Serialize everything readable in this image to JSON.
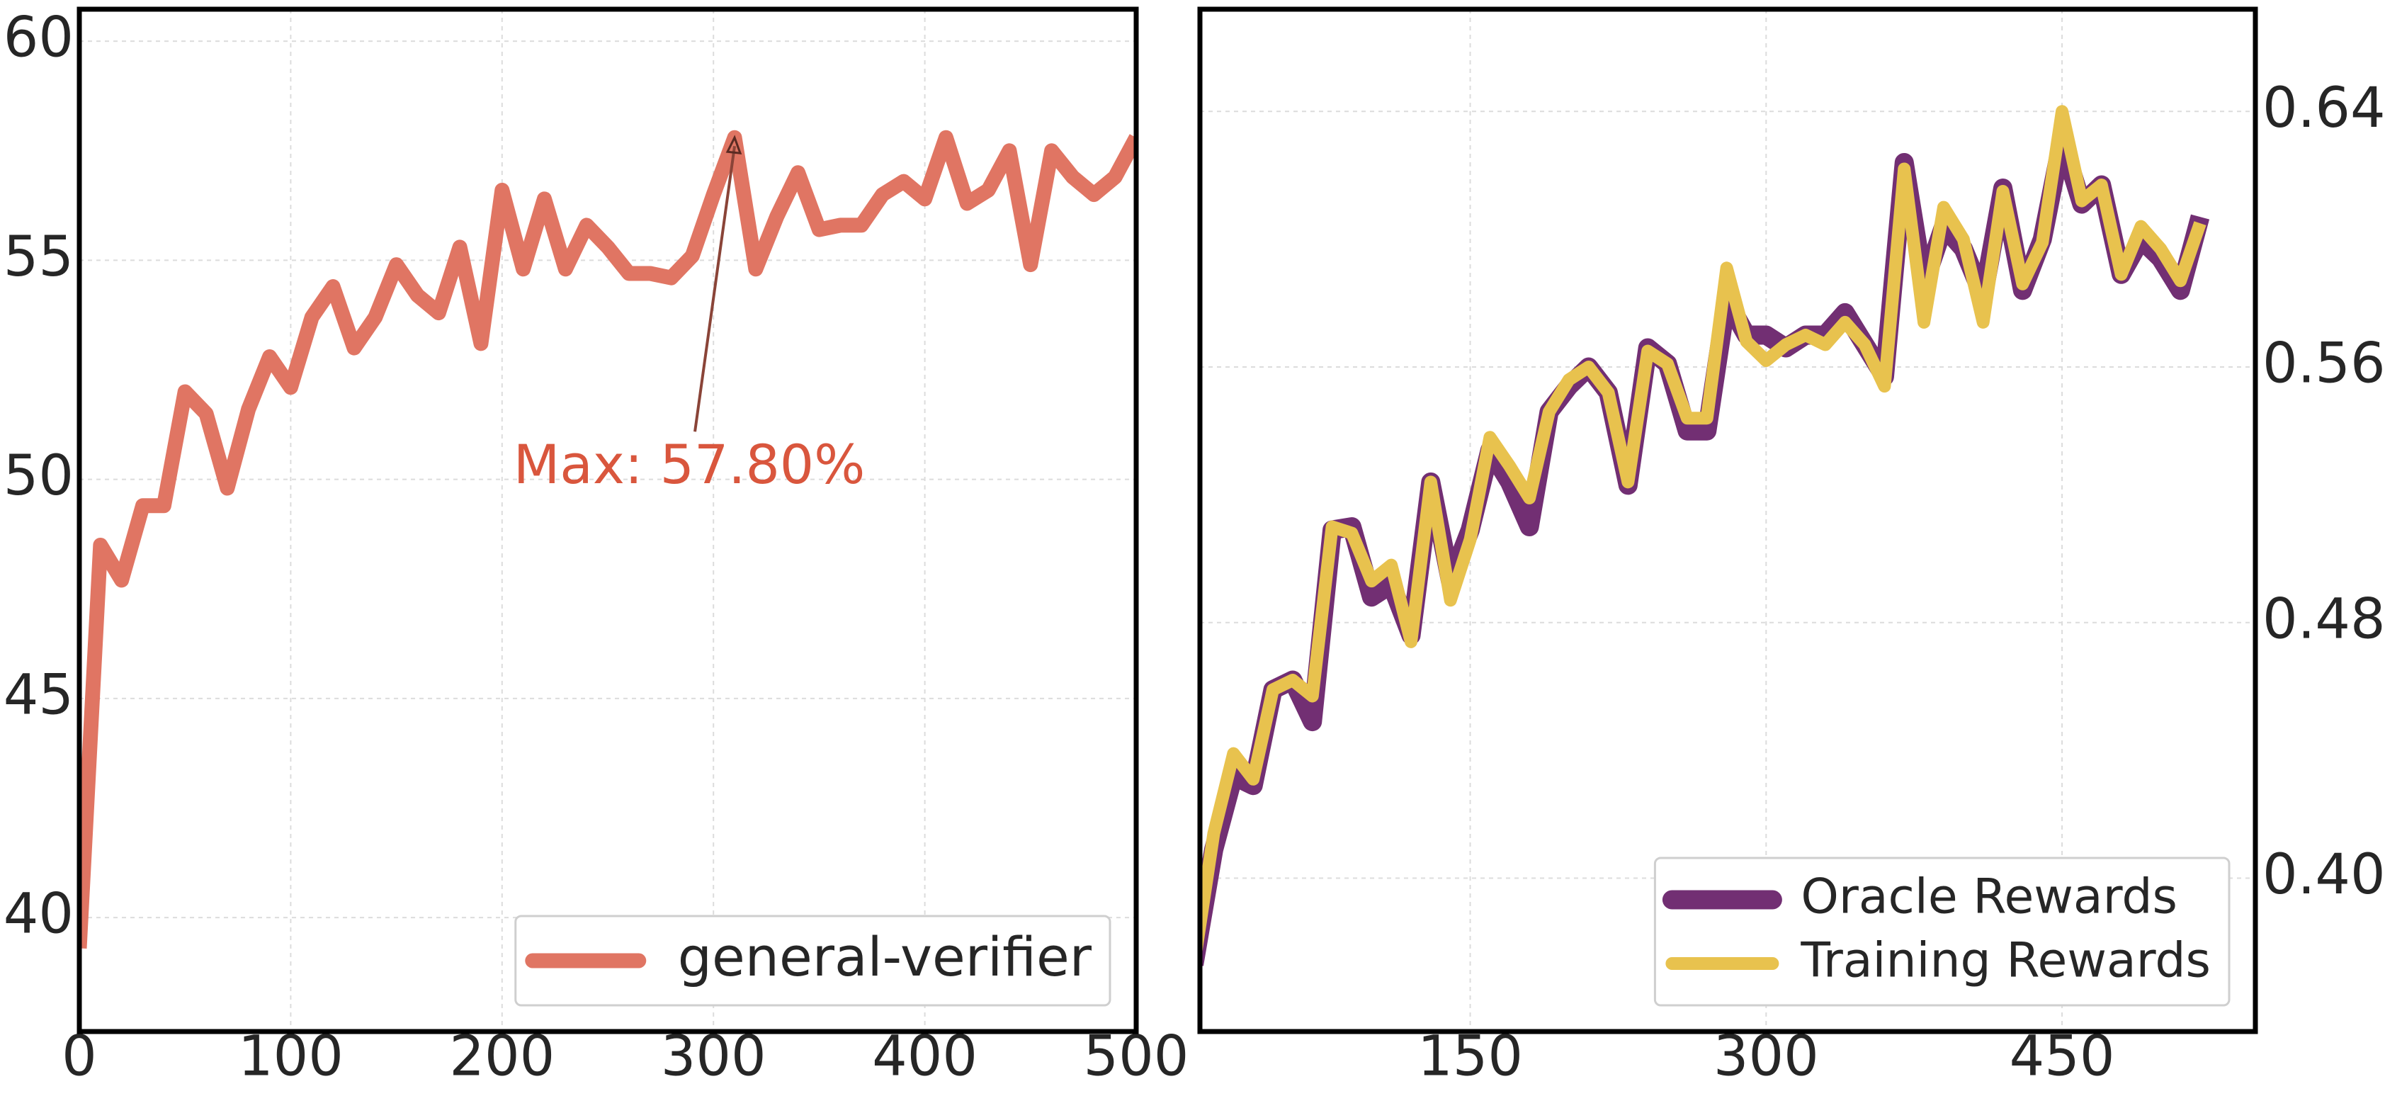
{
  "chart_data": [
    {
      "type": "line",
      "x": [
        0,
        10,
        20,
        30,
        40,
        50,
        60,
        70,
        80,
        90,
        100,
        110,
        120,
        130,
        140,
        150,
        160,
        170,
        180,
        190,
        200,
        210,
        220,
        230,
        240,
        250,
        260,
        270,
        280,
        290,
        300,
        310,
        320,
        330,
        340,
        350,
        360,
        370,
        380,
        390,
        400,
        410,
        420,
        430,
        440,
        450,
        460,
        470,
        480,
        490,
        500
      ],
      "series": [
        {
          "name": "general-verifier",
          "color": "#e07563",
          "values": [
            39.3,
            48.5,
            47.7,
            49.4,
            49.4,
            52.0,
            51.5,
            49.8,
            51.6,
            52.8,
            52.1,
            53.7,
            54.4,
            53.0,
            53.7,
            54.9,
            54.2,
            53.8,
            55.3,
            53.1,
            56.6,
            54.8,
            56.4,
            54.8,
            55.8,
            55.3,
            54.7,
            54.7,
            54.6,
            55.1,
            56.5,
            57.8,
            54.8,
            56.0,
            57.0,
            55.7,
            55.8,
            55.8,
            56.5,
            56.8,
            56.4,
            57.8,
            56.3,
            56.6,
            57.5,
            54.9,
            57.5,
            56.9,
            56.5,
            56.9,
            57.8
          ]
        }
      ],
      "annotation": {
        "text": "Max: 57.80%",
        "xy": [
          310,
          57.8
        ],
        "color": "#d9563d"
      },
      "xlim": [
        0,
        500
      ],
      "ylim": [
        37.4,
        60.73
      ],
      "xticks": [
        0,
        100,
        200,
        300,
        400,
        500
      ],
      "yticks": [
        40,
        45,
        50,
        55,
        60
      ],
      "yaxis_side": "left",
      "grid": true,
      "legend": "lower right"
    },
    {
      "type": "line",
      "x": [
        10,
        20,
        30,
        40,
        50,
        60,
        70,
        80,
        90,
        100,
        110,
        120,
        130,
        140,
        150,
        160,
        170,
        180,
        190,
        200,
        210,
        220,
        230,
        240,
        250,
        260,
        270,
        280,
        290,
        300,
        310,
        320,
        330,
        340,
        350,
        360,
        370,
        380,
        390,
        400,
        410,
        420,
        430,
        440,
        450,
        460,
        470,
        480,
        490,
        500,
        510,
        520
      ],
      "series": [
        {
          "name": "Oracle Rewards",
          "color": "#722f73",
          "values": [
            0.373,
            0.409,
            0.432,
            0.429,
            0.459,
            0.462,
            0.449,
            0.509,
            0.51,
            0.488,
            0.492,
            0.476,
            0.524,
            0.493,
            0.509,
            0.534,
            0.524,
            0.51,
            0.546,
            0.554,
            0.56,
            0.552,
            0.523,
            0.566,
            0.561,
            0.54,
            0.54,
            0.581,
            0.57,
            0.57,
            0.566,
            0.57,
            0.57,
            0.577,
            0.567,
            0.557,
            0.624,
            0.586,
            0.604,
            0.597,
            0.582,
            0.616,
            0.584,
            0.6,
            0.631,
            0.611,
            0.617,
            0.589,
            0.6,
            0.594,
            0.584,
            0.607
          ]
        },
        {
          "name": "Training Rewards",
          "color": "#e8c24e",
          "values": [
            0.373,
            0.414,
            0.439,
            0.431,
            0.459,
            0.462,
            0.457,
            0.51,
            0.508,
            0.493,
            0.498,
            0.474,
            0.524,
            0.487,
            0.506,
            0.538,
            0.529,
            0.519,
            0.546,
            0.556,
            0.56,
            0.552,
            0.524,
            0.565,
            0.561,
            0.544,
            0.544,
            0.591,
            0.568,
            0.562,
            0.567,
            0.57,
            0.567,
            0.574,
            0.567,
            0.554,
            0.622,
            0.574,
            0.61,
            0.6,
            0.574,
            0.615,
            0.586,
            0.599,
            0.64,
            0.612,
            0.617,
            0.589,
            0.604,
            0.597,
            0.587,
            0.605
          ]
        }
      ],
      "xlim": [
        13,
        548
      ],
      "ylim": [
        0.352,
        0.672
      ],
      "xticks": [
        150,
        300,
        450
      ],
      "yticks": [
        {
          "value": 0.4,
          "label": "0.40"
        },
        0.48,
        0.56,
        0.64
      ],
      "yaxis_side": "right",
      "grid": true,
      "legend": "lower right"
    }
  ]
}
